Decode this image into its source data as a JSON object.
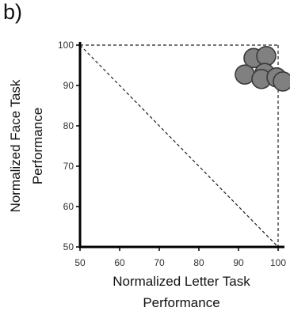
{
  "panel_label": "b)",
  "chart_data": {
    "type": "scatter",
    "xlabel": [
      "Normalized Letter Task",
      "Performance"
    ],
    "ylabel": [
      "Normalized Face Task",
      "Performance"
    ],
    "xlim": [
      50,
      100
    ],
    "ylim": [
      50,
      100
    ],
    "xticks": [
      50,
      60,
      70,
      80,
      90,
      100
    ],
    "yticks": [
      50,
      60,
      70,
      80,
      90,
      100
    ],
    "grid": false,
    "reference_lines": [
      {
        "style": "dashed",
        "from": [
          50,
          100
        ],
        "to": [
          100,
          100
        ]
      },
      {
        "style": "dashed",
        "from": [
          100,
          100
        ],
        "to": [
          100,
          50
        ]
      },
      {
        "style": "dashed",
        "from": [
          50,
          100
        ],
        "to": [
          100,
          50
        ]
      }
    ],
    "points": [
      {
        "x": 93.8,
        "y": 96.8
      },
      {
        "x": 97.0,
        "y": 97.3
      },
      {
        "x": 91.6,
        "y": 92.7
      },
      {
        "x": 96.6,
        "y": 93.1
      },
      {
        "x": 95.8,
        "y": 91.6
      },
      {
        "x": 99.6,
        "y": 92.0
      },
      {
        "x": 101.2,
        "y": 91.0
      }
    ],
    "marker_color": "#808080",
    "marker_edge_color": "#3a3a3a"
  }
}
